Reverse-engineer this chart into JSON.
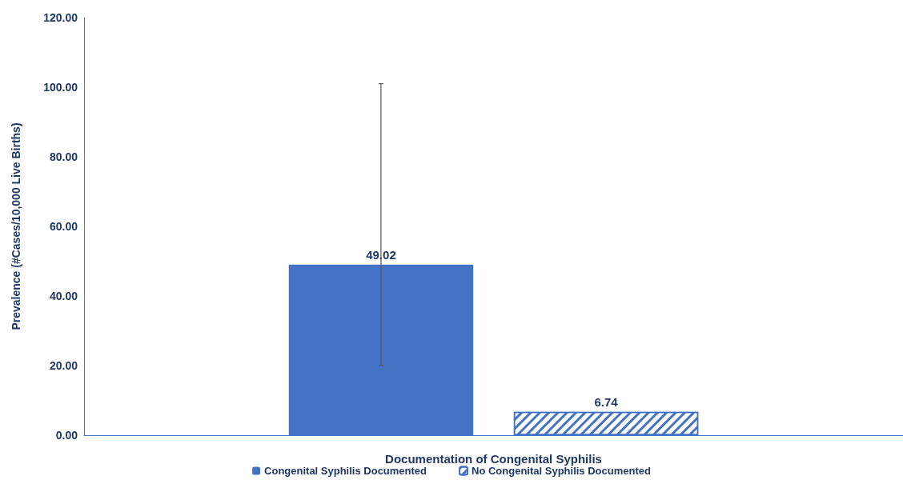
{
  "chart_data": {
    "type": "bar",
    "xlabel": "Documentation of Congenital Syphilis",
    "ylabel": "Prevalence (#Cases/10,000 Live Births)",
    "categories": [
      null
    ],
    "series": [
      {
        "name": "Congenital Syphilis Documented",
        "color": "#4472c4",
        "values": [
          49.02
        ],
        "errors": [
          [
            20,
            101
          ]
        ]
      },
      {
        "name": "No Congenital Syphilis Documented",
        "color": "#4472c4",
        "values": [
          6.74
        ],
        "errors": [
          null
        ]
      }
    ],
    "ylim": [
      0,
      120
    ],
    "yticks": [
      {
        "value": 0,
        "label": "0.00"
      },
      {
        "value": 20,
        "label": "20.00"
      },
      {
        "value": 40,
        "label": "40.00"
      },
      {
        "value": 60,
        "label": "60.00"
      },
      {
        "value": 80,
        "label": "80.00"
      },
      {
        "value": 100,
        "label": "100.00"
      },
      {
        "value": 120,
        "label": "120.00"
      }
    ],
    "data_labels": true,
    "legend": "bottom"
  }
}
